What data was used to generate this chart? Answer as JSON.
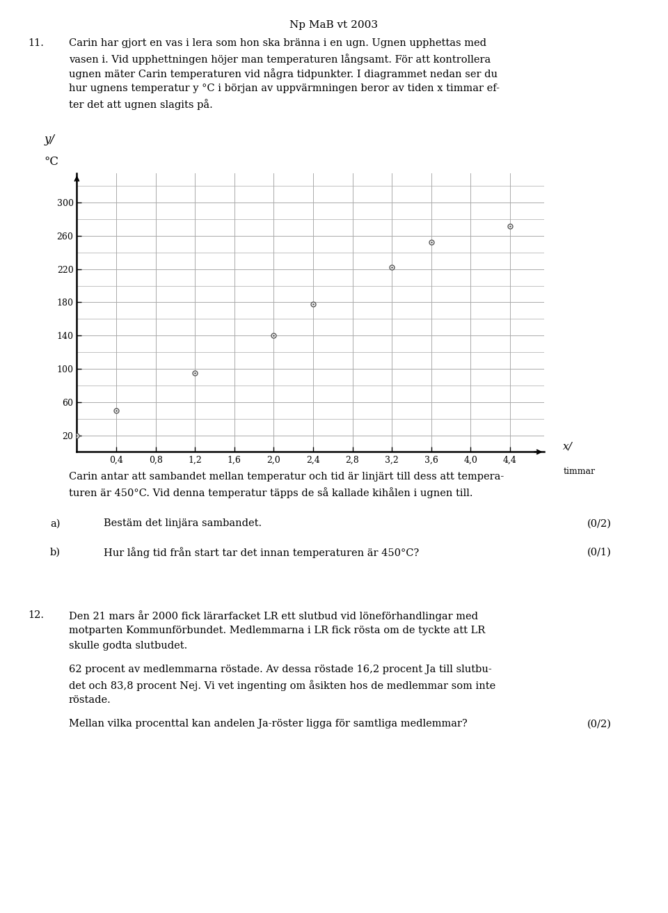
{
  "title": "Np MaB vt 2003",
  "data_points": [
    [
      0.0,
      20
    ],
    [
      0.4,
      50
    ],
    [
      1.2,
      95
    ],
    [
      2.0,
      140
    ],
    [
      2.4,
      178
    ],
    [
      3.2,
      222
    ],
    [
      3.6,
      252
    ],
    [
      4.4,
      272
    ]
  ],
  "xlim": [
    0,
    4.75
  ],
  "ylim": [
    0,
    335
  ],
  "xticks": [
    0.4,
    0.8,
    1.2,
    1.6,
    2.0,
    2.4,
    2.8,
    3.2,
    3.6,
    4.0,
    4.4
  ],
  "yticks": [
    20,
    60,
    100,
    140,
    180,
    220,
    260,
    300
  ],
  "grid_color": "#aaaaaa",
  "marker_color": "#555555",
  "marker_size": 5,
  "p11_lines": [
    "Carin har gjort en vas i lera som hon ska bränna i en ugn. Ugnen upphettas med",
    "vasen i. Vid upphettningen höjer man temperaturen långsamt. För att kontrollera",
    "ugnen mäter Carin temperaturen vid några tidpunkter. I diagrammet nedan ser du",
    "hur ugnens temperatur y °C i början av uppvärmningen beror av tiden x timmar ef-",
    "ter det att ugnen slagits på."
  ],
  "below_lines": [
    "Carin antar att sambandet mellan temperatur och tid är linjärt till dess att tempera-",
    "turen är 450°C. Vid denna temperatur täpps de så kallade kihålen i ugnen till."
  ],
  "qa": [
    {
      "letter": "a)",
      "text": "Bestäm det linjära sambandet.",
      "score": "(0/2)"
    },
    {
      "letter": "b)",
      "text": "Hur lång tid från start tar det innan temperaturen är 450°C?",
      "score": "(0/1)"
    }
  ],
  "p12_lines": [
    "Den 21 mars år 2000 fick lärarfacket LR ett slutbud vid löneförhandlingar med",
    "motparten Kommunförbundet. Medlemmarna i LR fick rösta om de tyckte att LR",
    "skulle godta slutbudet."
  ],
  "p12_lines2": [
    "62 procent av medlemmarna röstade. Av dessa röstade 16,2 procent Ja till slutbu-",
    "det och 83,8 procent Nej. Vi vet ingenting om åsikten hos de medlemmar som inte",
    "röstade."
  ],
  "p12_last": "Mellan vilka procenttal kan andelen Ja-röster ligga för samtliga medlemmar?",
  "p12_score": "(0/2)"
}
